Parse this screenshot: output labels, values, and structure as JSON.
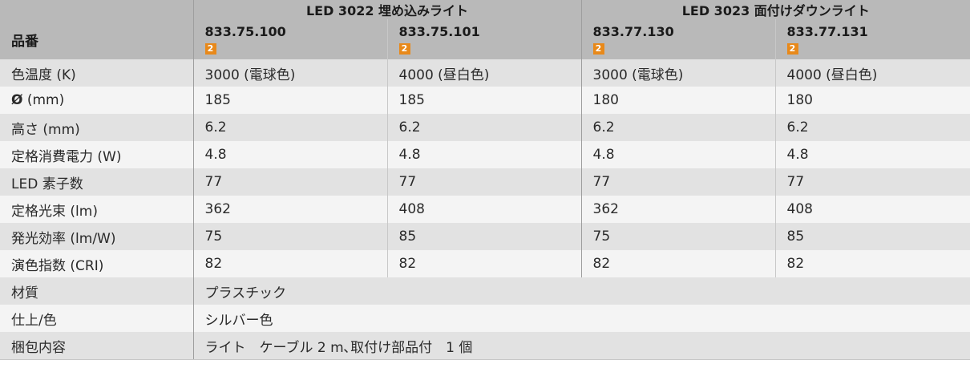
{
  "header": {
    "label": "品番",
    "group1": "LED 3022 埋め込みライト",
    "group2": "LED 3023 面付けダウンライト",
    "products": [
      {
        "code": "833.75.100",
        "badge": "2"
      },
      {
        "code": "833.75.101",
        "badge": "2"
      },
      {
        "code": "833.77.130",
        "badge": "2"
      },
      {
        "code": "833.77.131",
        "badge": "2"
      }
    ]
  },
  "rows": [
    {
      "label": "色温度 (K)",
      "values": [
        "3000 (電球色)",
        "4000 (昼白色)",
        "3000 (電球色)",
        "4000 (昼白色)"
      ]
    },
    {
      "label": "Ø (mm)",
      "values": [
        "185",
        "185",
        "180",
        "180"
      ]
    },
    {
      "label": "高さ (mm)",
      "values": [
        "6.2",
        "6.2",
        "6.2",
        "6.2"
      ]
    },
    {
      "label": "定格消費電力 (W)",
      "values": [
        "4.8",
        "4.8",
        "4.8",
        "4.8"
      ]
    },
    {
      "label": "LED 素子数",
      "values": [
        "77",
        "77",
        "77",
        "77"
      ]
    },
    {
      "label": "定格光束 (lm)",
      "values": [
        "362",
        "408",
        "362",
        "408"
      ]
    },
    {
      "label": "発光効率 (lm/W)",
      "values": [
        "75",
        "85",
        "75",
        "85"
      ]
    },
    {
      "label": "演色指数 (CRI)",
      "values": [
        "82",
        "82",
        "82",
        "82"
      ]
    }
  ],
  "spanRows": [
    {
      "label": "材質",
      "value": "プラスチック"
    },
    {
      "label": "仕上/色",
      "value": "シルバー色"
    },
    {
      "label": "梱包内容",
      "value": "ライト　ケーブル 2 m､取付け部品付　1 個"
    }
  ]
}
